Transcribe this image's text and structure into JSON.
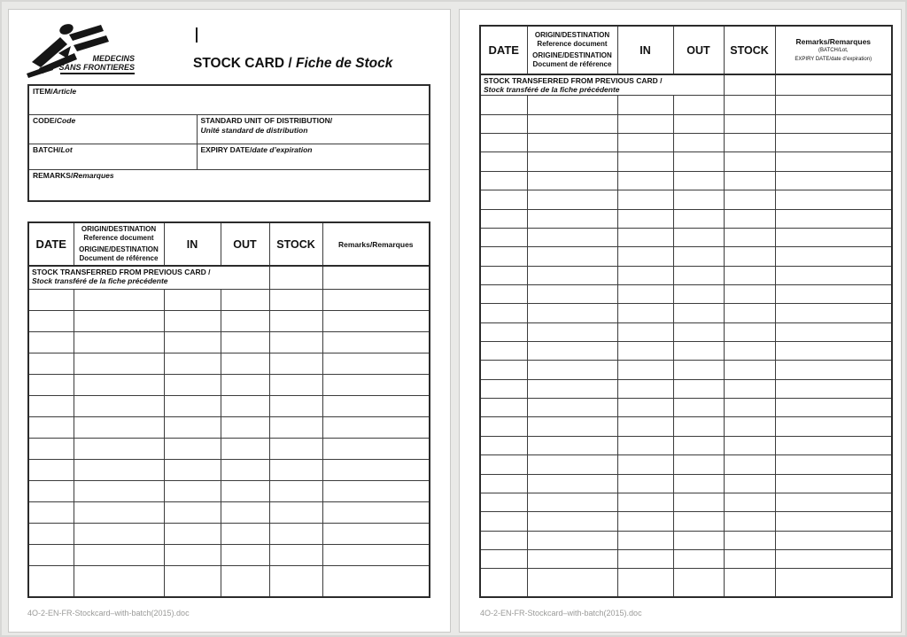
{
  "logo": {
    "org_line1": "MEDECINS",
    "org_line2": "SANS FRONTIERES"
  },
  "title": {
    "en": "STOCK CARD /",
    "fr": " Fiche de Stock"
  },
  "info_form": {
    "item": {
      "en": "ITEM/",
      "fr": "Article"
    },
    "code": {
      "en": "CODE/",
      "fr": "Code"
    },
    "unit": {
      "en": "STANDARD UNIT OF DISTRIBUTION/",
      "fr": "Unité standard de distribution"
    },
    "batch": {
      "en": "BATCH/",
      "fr": "Lot"
    },
    "expiry": {
      "en": "EXPIRY DATE/",
      "fr": "date d’expiration"
    },
    "remarks": {
      "en": "REMARKS/",
      "fr": "Remarques"
    }
  },
  "stock_table": {
    "headers": {
      "date": "DATE",
      "origin_lines": [
        "ORIGIN/DESTINATION",
        "Reference document",
        "ORIGINE/DESTINATION",
        "Document de référence"
      ],
      "in": "IN",
      "out": "OUT",
      "stock": "STOCK",
      "remarks": "Remarks/Remarques",
      "remarks_note_1": "(BATCH/Lot,",
      "remarks_note_2": "EXPIRY DATE/date d’expiration)"
    },
    "transfer_row": {
      "en": "STOCK TRANSFERRED FROM PREVIOUS CARD /",
      "fr": "Stock transféré de la fiche précédente"
    },
    "left_empty_rows": 14,
    "right_empty_rows": 26
  },
  "footer": {
    "filename": "4O-2-EN-FR-Stockcard–with-batch(2015).doc"
  }
}
